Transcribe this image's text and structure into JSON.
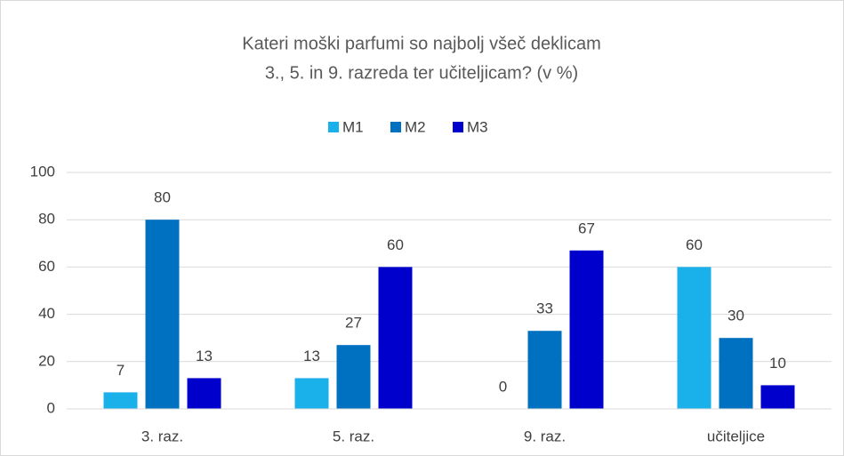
{
  "chart_data": {
    "type": "bar",
    "title": [
      "Kateri moški parfumi so najbolj všeč deklicam",
      "3., 5. in 9. razreda ter učiteljicam? (v %)"
    ],
    "categories": [
      "3. raz.",
      "5. raz.",
      "9. raz.",
      "učiteljice"
    ],
    "series": [
      {
        "name": "M1",
        "color": "#1ab0ea",
        "values": [
          7,
          13,
          0,
          60
        ]
      },
      {
        "name": "M2",
        "color": "#0070c0",
        "values": [
          80,
          27,
          33,
          30
        ]
      },
      {
        "name": "M3",
        "color": "#0000cc",
        "values": [
          13,
          60,
          67,
          10
        ]
      }
    ],
    "ylim": [
      0,
      100
    ],
    "yticks": [
      0,
      20,
      40,
      60,
      80,
      100
    ],
    "grid": true,
    "legend": "top"
  }
}
